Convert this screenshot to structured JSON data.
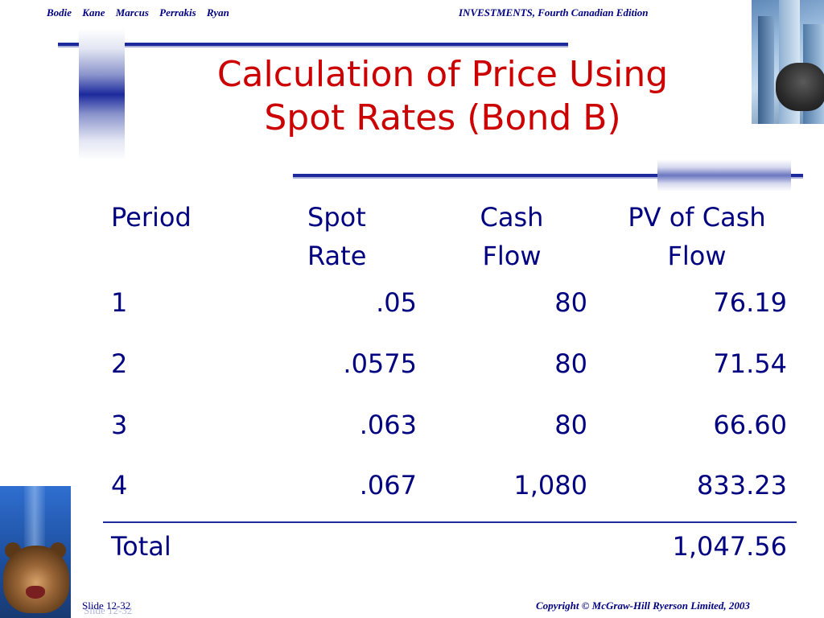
{
  "header": {
    "authors": "Bodie Kane Marcus Perrakis Ryan",
    "book": "INVESTMENTS, Fourth Canadian Edition"
  },
  "slide": {
    "title_line1": "Calculation of Price Using",
    "title_line2": "Spot Rates (Bond B)"
  },
  "table": {
    "headers": {
      "period": "Period",
      "spot_line1": "Spot",
      "spot_line2": "Rate",
      "cash_line1": "Cash",
      "cash_line2": "Flow",
      "pv_line1": "PV of Cash",
      "pv_line2": "Flow"
    },
    "rows": [
      {
        "period": "1",
        "spot_rate": ".05",
        "cash_flow": "80",
        "pv": "76.19"
      },
      {
        "period": "2",
        "spot_rate": ".0575",
        "cash_flow": "80",
        "pv": "71.54"
      },
      {
        "period": "3",
        "spot_rate": ".063",
        "cash_flow": "80",
        "pv": "66.60"
      },
      {
        "period": "4",
        "spot_rate": ".067",
        "cash_flow": "1,080",
        "pv": "833.23"
      }
    ],
    "total": {
      "label": "Total",
      "value": "1,047.56"
    }
  },
  "footer": {
    "slide_number": "Slide 12-32",
    "copyright": "Copyright © McGraw-Hill Ryerson Limited, 2003"
  },
  "colors": {
    "title": "#cc0000",
    "text": "#000080",
    "accent": "#1c2a9c"
  },
  "images": {
    "top_right": "bull-photo",
    "bottom_left": "bear-photo"
  }
}
